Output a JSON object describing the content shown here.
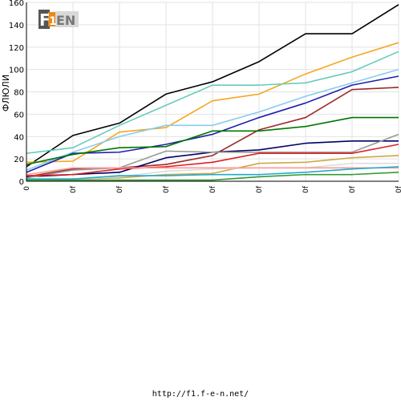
{
  "footer_url": "http://f1.f-e-n.net/",
  "logo": {
    "text_f": "F",
    "text_1": "1",
    "text_en": "EN"
  },
  "chart_data": {
    "type": "line",
    "title": "",
    "xlabel": "",
    "ylabel": "ФЛЮЛИ",
    "ylim": [
      0,
      160
    ],
    "yticks": [
      0,
      20,
      40,
      60,
      80,
      100,
      120,
      140,
      160
    ],
    "x": [
      0,
      1,
      2,
      3,
      4,
      5,
      6,
      7,
      8
    ],
    "xtick_labels": [
      "0",
      "0f",
      "0f",
      "0f",
      "0f",
      "0f",
      "0f",
      "0f",
      "0f"
    ],
    "grid": true,
    "series": [
      {
        "color": "#000000",
        "values": [
          13,
          41,
          52,
          78,
          89,
          107,
          132,
          132,
          158
        ]
      },
      {
        "color": "#f5a623",
        "values": [
          17,
          18,
          44,
          48,
          72,
          78,
          96,
          111,
          124
        ]
      },
      {
        "color": "#66ccbb",
        "values": [
          25,
          30,
          50,
          68,
          86,
          86,
          88,
          98,
          116
        ]
      },
      {
        "color": "#88ccee",
        "values": [
          10,
          26,
          40,
          50,
          50,
          62,
          76,
          88,
          100
        ]
      },
      {
        "color": "#1f1fb0",
        "values": [
          8,
          25,
          26,
          33,
          42,
          57,
          70,
          86,
          94
        ]
      },
      {
        "color": "#9e2a2a",
        "values": [
          4,
          11,
          12,
          15,
          23,
          46,
          57,
          82,
          84
        ]
      },
      {
        "color": "#007700",
        "values": [
          15,
          24,
          30,
          31,
          45,
          45,
          49,
          57,
          57
        ]
      },
      {
        "color": "#000066",
        "values": [
          4,
          6,
          8,
          21,
          26,
          28,
          34,
          36,
          36
        ]
      },
      {
        "color": "#999999",
        "values": [
          3,
          10,
          12,
          27,
          26,
          26,
          26,
          26,
          42
        ]
      },
      {
        "color": "#dd2222",
        "values": [
          5,
          6,
          11,
          13,
          17,
          25,
          25,
          25,
          33
        ]
      },
      {
        "color": "#ccaa44",
        "values": [
          2,
          2,
          3,
          6,
          7,
          16,
          17,
          21,
          23
        ]
      },
      {
        "color": "#dddddd",
        "values": [
          1,
          2,
          4,
          9,
          11,
          12,
          12,
          16,
          16
        ]
      },
      {
        "color": "#ff9999",
        "values": [
          6,
          12,
          12,
          12,
          12,
          12,
          12,
          12,
          12
        ]
      },
      {
        "color": "#22aacc",
        "values": [
          2,
          2,
          5,
          5,
          6,
          6,
          8,
          11,
          13
        ]
      },
      {
        "color": "#339933",
        "values": [
          1,
          1,
          1,
          1,
          1,
          4,
          6,
          6,
          8
        ]
      }
    ]
  }
}
